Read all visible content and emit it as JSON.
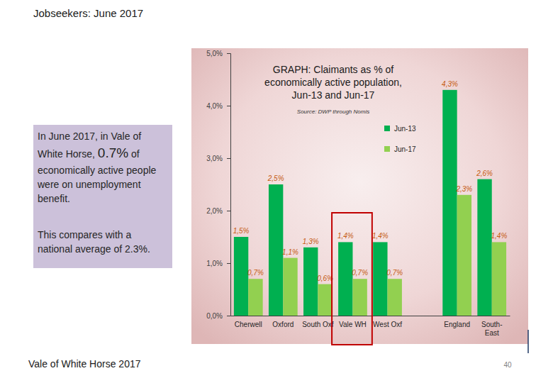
{
  "page": {
    "title": "Jobseekers: June 2017",
    "summary": {
      "text_before": "In June 2017, in Vale of White Horse, ",
      "highlight": "0.7%",
      "text_after": " of economically active people were on unemployment benefit."
    },
    "comparison": "This compares with a national average of 2.3%.",
    "footer": "Vale of White Horse 2017",
    "page_number": 40
  },
  "chart_data": {
    "type": "bar",
    "title": "GRAPH: Claimants as % of economically active population, Jun-13 and Jun-17",
    "subtitle": "Source: DWP through Nomis",
    "categories": [
      "Cherwell",
      "Oxford",
      "South Oxf",
      "Vale WH",
      "West Oxf",
      null,
      "England",
      "South-East"
    ],
    "series": [
      {
        "name": "Jun-13",
        "color": "#00b050",
        "values": [
          1.5,
          2.5,
          1.3,
          1.4,
          1.4,
          null,
          4.3,
          2.6
        ],
        "value_labels": [
          "1,5%",
          "2,5%",
          "1,3%",
          "1,4%",
          "1,4%",
          null,
          "4,3%",
          "2,6%"
        ]
      },
      {
        "name": "Jun-17",
        "color": "#92d050",
        "values": [
          0.7,
          1.1,
          0.6,
          0.7,
          0.7,
          null,
          2.3,
          1.4
        ],
        "value_labels": [
          "0,7%",
          "1,1%",
          "0,6%",
          "0,7%",
          "0,7%",
          null,
          "2,3%",
          "1,4%"
        ]
      }
    ],
    "ylim": [
      0,
      5
    ],
    "yticks": [
      {
        "value": 0,
        "label": "0,0%"
      },
      {
        "value": 1,
        "label": "1,0%"
      },
      {
        "value": 2,
        "label": "2,0%"
      },
      {
        "value": 3,
        "label": "3,0%"
      },
      {
        "value": 4,
        "label": "4,0%"
      },
      {
        "value": 5,
        "label": "5,0%"
      }
    ],
    "grid": false,
    "legend": "upper right",
    "data_labels": true
  }
}
